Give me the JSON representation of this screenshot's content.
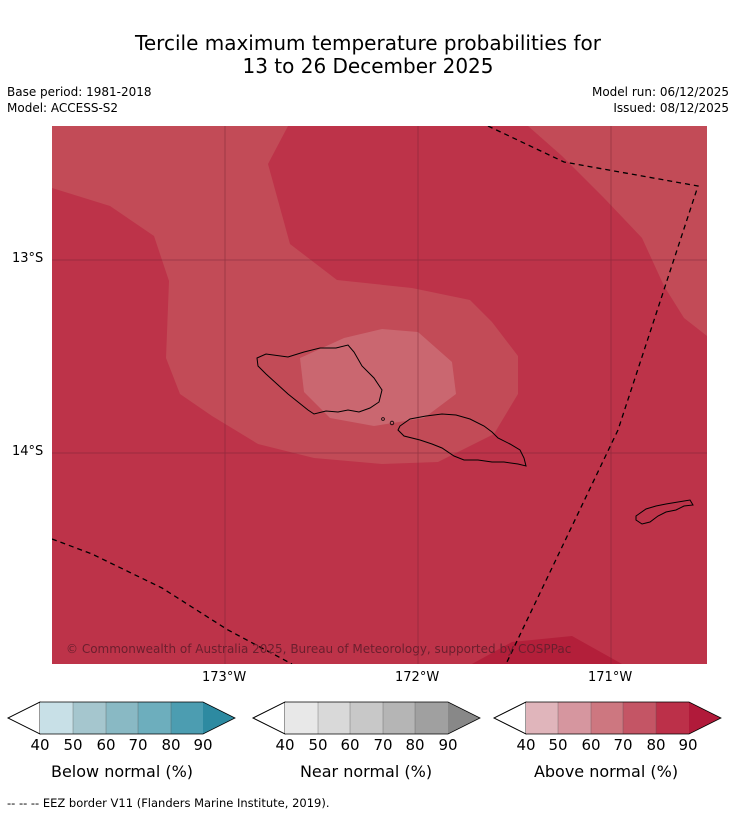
{
  "title": {
    "line1": "Tercile maximum temperature probabilities for",
    "line2": "13 to 26 December 2025"
  },
  "meta": {
    "base_period": "Base period: 1981-2018",
    "model": "Model: ACCESS-S2",
    "model_run": "Model run: 06/12/2025",
    "issued": "Issued: 08/12/2025"
  },
  "map": {
    "copyright": "© Commonwealth of Australia 2025, Bureau of Meteorology, supported by COSPPac",
    "lat_ticks": [
      "13°S",
      "14°S"
    ],
    "lon_ticks": [
      "173°W",
      "172°W",
      "171°W"
    ],
    "colors": {
      "base": "#bd3349",
      "band70": "#c24b57",
      "band60": "#ca6770",
      "dark": "#b31f3a"
    }
  },
  "colorbars": [
    {
      "label": "Below normal (%)",
      "ticks": [
        "40",
        "50",
        "60",
        "70",
        "80",
        "90"
      ],
      "colors": [
        "#c8e0e7",
        "#a5c6ce",
        "#89b9c4",
        "#6daebd",
        "#4c9db1",
        "#2d8aa1"
      ]
    },
    {
      "label": "Near normal (%)",
      "ticks": [
        "40",
        "50",
        "60",
        "70",
        "80",
        "90"
      ],
      "colors": [
        "#e8e8e8",
        "#d9d9d9",
        "#c8c8c8",
        "#b5b5b5",
        "#a0a0a0",
        "#888888"
      ]
    },
    {
      "label": "Above normal (%)",
      "ticks": [
        "40",
        "50",
        "60",
        "70",
        "80",
        "90"
      ],
      "colors": [
        "#e0b5bb",
        "#d6969f",
        "#cd7780",
        "#c45565",
        "#bc3049",
        "#b11a3a"
      ]
    }
  ],
  "footer": "--  --  -- EEZ border V11 (Flanders Marine Institute, 2019)."
}
